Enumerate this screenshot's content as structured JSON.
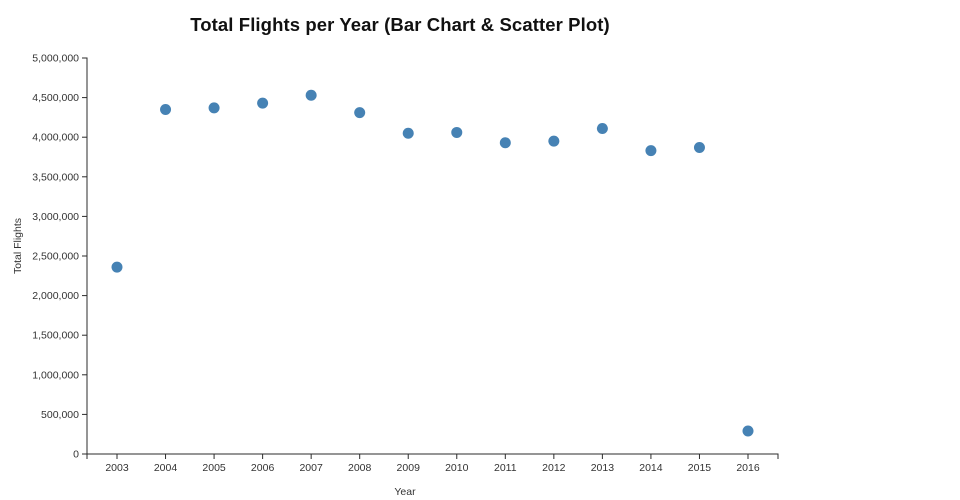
{
  "figure": {
    "background_color": "#ffffff"
  },
  "chart_data": {
    "type": "scatter",
    "title": "Total Flights per Year (Bar Chart & Scatter Plot)",
    "xlabel": "Year",
    "ylabel": "Total Flights",
    "categories": [
      "2003",
      "2004",
      "2005",
      "2006",
      "2007",
      "2008",
      "2009",
      "2010",
      "2011",
      "2012",
      "2013",
      "2014",
      "2015",
      "2016"
    ],
    "series": [
      {
        "name": "Total Flights",
        "values": [
          2360000,
          4350000,
          4370000,
          4430000,
          4530000,
          4310000,
          4050000,
          4060000,
          3930000,
          3950000,
          4110000,
          3830000,
          3870000,
          290000
        ]
      }
    ],
    "ylim": [
      0,
      5000000
    ],
    "y_ticks": [
      0,
      500000,
      1000000,
      1500000,
      2000000,
      2500000,
      3000000,
      3500000,
      4000000,
      4500000,
      5000000
    ],
    "y_tick_labels": [
      "0",
      "500,000",
      "1,000,000",
      "1,500,000",
      "2,000,000",
      "2,500,000",
      "3,000,000",
      "3,500,000",
      "4,000,000",
      "4,500,000",
      "5,000,000"
    ],
    "grid": false,
    "legend": null,
    "marker_color": "#4682B4",
    "axis_color": "#2b2b2b",
    "text_color": "#333333"
  }
}
